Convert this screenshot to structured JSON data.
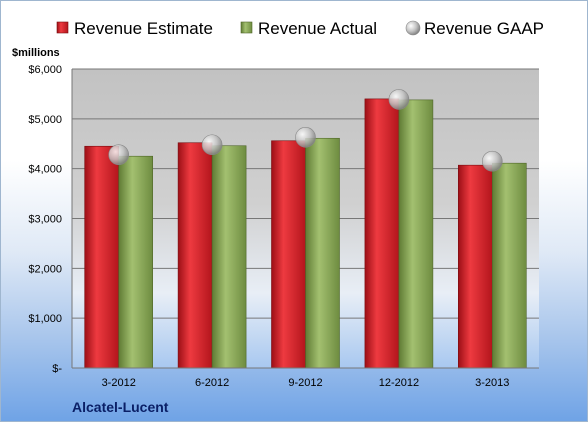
{
  "chart_data": {
    "type": "bar",
    "units_label": "$millions",
    "company": "Alcatel-Lucent",
    "categories": [
      "3-2012",
      "6-2012",
      "9-2012",
      "12-2012",
      "3-2013"
    ],
    "series": [
      {
        "name": "Revenue Estimate",
        "type": "bar",
        "color": "#d8202a",
        "values": [
          4450,
          4520,
          4560,
          5400,
          4070
        ]
      },
      {
        "name": "Revenue Actual",
        "type": "bar",
        "color": "#8aa95a",
        "values": [
          4250,
          4460,
          4610,
          5380,
          4110
        ]
      },
      {
        "name": "Revenue GAAP",
        "type": "marker",
        "color": "#b8b8b8",
        "values": [
          4280,
          4480,
          4630,
          5390,
          4150
        ]
      }
    ],
    "y_ticks": [
      {
        "value": 0,
        "label": "$-"
      },
      {
        "value": 1000,
        "label": "$1,000"
      },
      {
        "value": 2000,
        "label": "$2,000"
      },
      {
        "value": 3000,
        "label": "$3,000"
      },
      {
        "value": 4000,
        "label": "$4,000"
      },
      {
        "value": 5000,
        "label": "$5,000"
      },
      {
        "value": 6000,
        "label": "$6,000"
      }
    ],
    "ylim": [
      0,
      6000
    ],
    "grid": true,
    "legend_position": "top"
  }
}
